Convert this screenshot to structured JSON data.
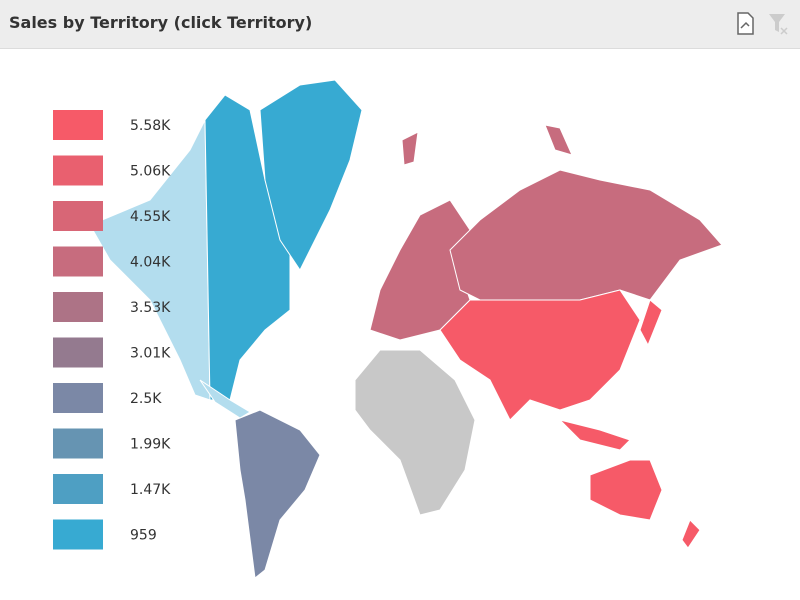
{
  "header": {
    "title": "Sales by Territory (click Territory)"
  },
  "legend": {
    "items": [
      {
        "label": "5.58K",
        "color": "#f65a68"
      },
      {
        "label": "5.06K",
        "color": "#e9606f"
      },
      {
        "label": "4.55K",
        "color": "#d86676"
      },
      {
        "label": "4.04K",
        "color": "#c76c7e"
      },
      {
        "label": "3.53K",
        "color": "#ad7386"
      },
      {
        "label": "3.01K",
        "color": "#947a8f"
      },
      {
        "label": "2.5K",
        "color": "#7b88a6"
      },
      {
        "label": "1.99K",
        "color": "#6694b2"
      },
      {
        "label": "1.47K",
        "color": "#4e9fc3"
      },
      {
        "label": "959",
        "color": "#37aad2"
      }
    ]
  }
}
